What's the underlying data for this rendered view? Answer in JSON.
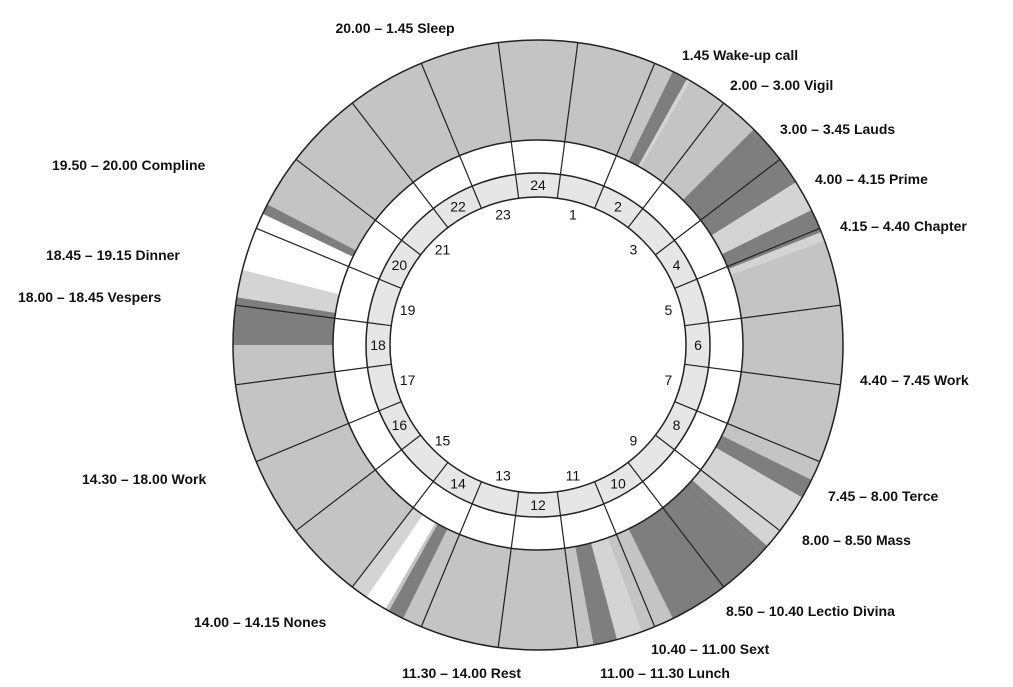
{
  "colors": {
    "rest": "#c4c4c4",
    "prayer": "#7e7e7e",
    "light": "#d4d4d4",
    "meal": "#ffffff",
    "band": "#ffffff",
    "hour_band": "#e6e6e6",
    "stroke": "#222222"
  },
  "hour_numbers": [
    "1",
    "2",
    "3",
    "4",
    "5",
    "6",
    "7",
    "8",
    "9",
    "10",
    "11",
    "12",
    "13",
    "14",
    "15",
    "16",
    "17",
    "18",
    "19",
    "20",
    "21",
    "22",
    "23",
    "24"
  ],
  "activities": [
    {
      "label": "20.00 – 1.45 Sleep"
    },
    {
      "label": "1.45 Wake-up call"
    },
    {
      "label": "2.00 – 3.00 Vigil"
    },
    {
      "label": "3.00 – 3.45 Lauds"
    },
    {
      "label": "4.00 – 4.15 Prime"
    },
    {
      "label": "4.15 – 4.40 Chapter"
    },
    {
      "label": "4.40 – 7.45 Work"
    },
    {
      "label": "7.45 – 8.00 Terce"
    },
    {
      "label": "8.00 – 8.50 Mass"
    },
    {
      "label": "8.50 – 10.40 Lectio Divina"
    },
    {
      "label": "10.40 – 11.00 Sext"
    },
    {
      "label": "11.00 – 11.30 Lunch"
    },
    {
      "label": "11.30 – 14.00 Rest"
    },
    {
      "label": "14.00 – 14.15 Nones"
    },
    {
      "label": "14.30 – 18.00 Work"
    },
    {
      "label": "18.00 – 18.45 Vespers"
    },
    {
      "label": "18.45 – 19.15 Dinner"
    },
    {
      "label": "19.50 – 20.00 Compline"
    }
  ],
  "segments": [
    {
      "start": 1.75,
      "end": 1.95,
      "shade": "prayer"
    },
    {
      "start": 1.95,
      "end": 2.0,
      "shade": "light"
    },
    {
      "start": 3.0,
      "end": 3.85,
      "shade": "prayer"
    },
    {
      "start": 3.85,
      "end": 4.0,
      "shade": "light"
    },
    {
      "start": 4.0,
      "end": 4.15,
      "shade": "light"
    },
    {
      "start": 4.15,
      "end": 4.25,
      "shade": "light"
    },
    {
      "start": 4.25,
      "end": 4.55,
      "shade": "prayer"
    },
    {
      "start": 4.55,
      "end": 4.67,
      "shade": "light"
    },
    {
      "start": 7.75,
      "end": 8.0,
      "shade": "prayer"
    },
    {
      "start": 8.0,
      "end": 8.75,
      "shade": "light"
    },
    {
      "start": 8.75,
      "end": 8.85,
      "shade": "prayer"
    },
    {
      "start": 8.85,
      "end": 10.25,
      "shade": "prayer"
    },
    {
      "start": 10.67,
      "end": 11.0,
      "shade": "light"
    },
    {
      "start": 11.0,
      "end": 11.3,
      "shade": "prayer"
    },
    {
      "start": 13.75,
      "end": 13.95,
      "shade": "prayer"
    },
    {
      "start": 14.0,
      "end": 14.28,
      "shade": "meal"
    },
    {
      "start": 14.28,
      "end": 14.5,
      "shade": "light"
    },
    {
      "start": 18.0,
      "end": 18.6,
      "shade": "prayer"
    },
    {
      "start": 18.6,
      "end": 18.75,
      "shade": "light"
    },
    {
      "start": 18.75,
      "end": 18.95,
      "shade": "light"
    },
    {
      "start": 18.95,
      "end": 19.7,
      "shade": "meal"
    },
    {
      "start": 19.7,
      "end": 19.83,
      "shade": "prayer"
    }
  ]
}
